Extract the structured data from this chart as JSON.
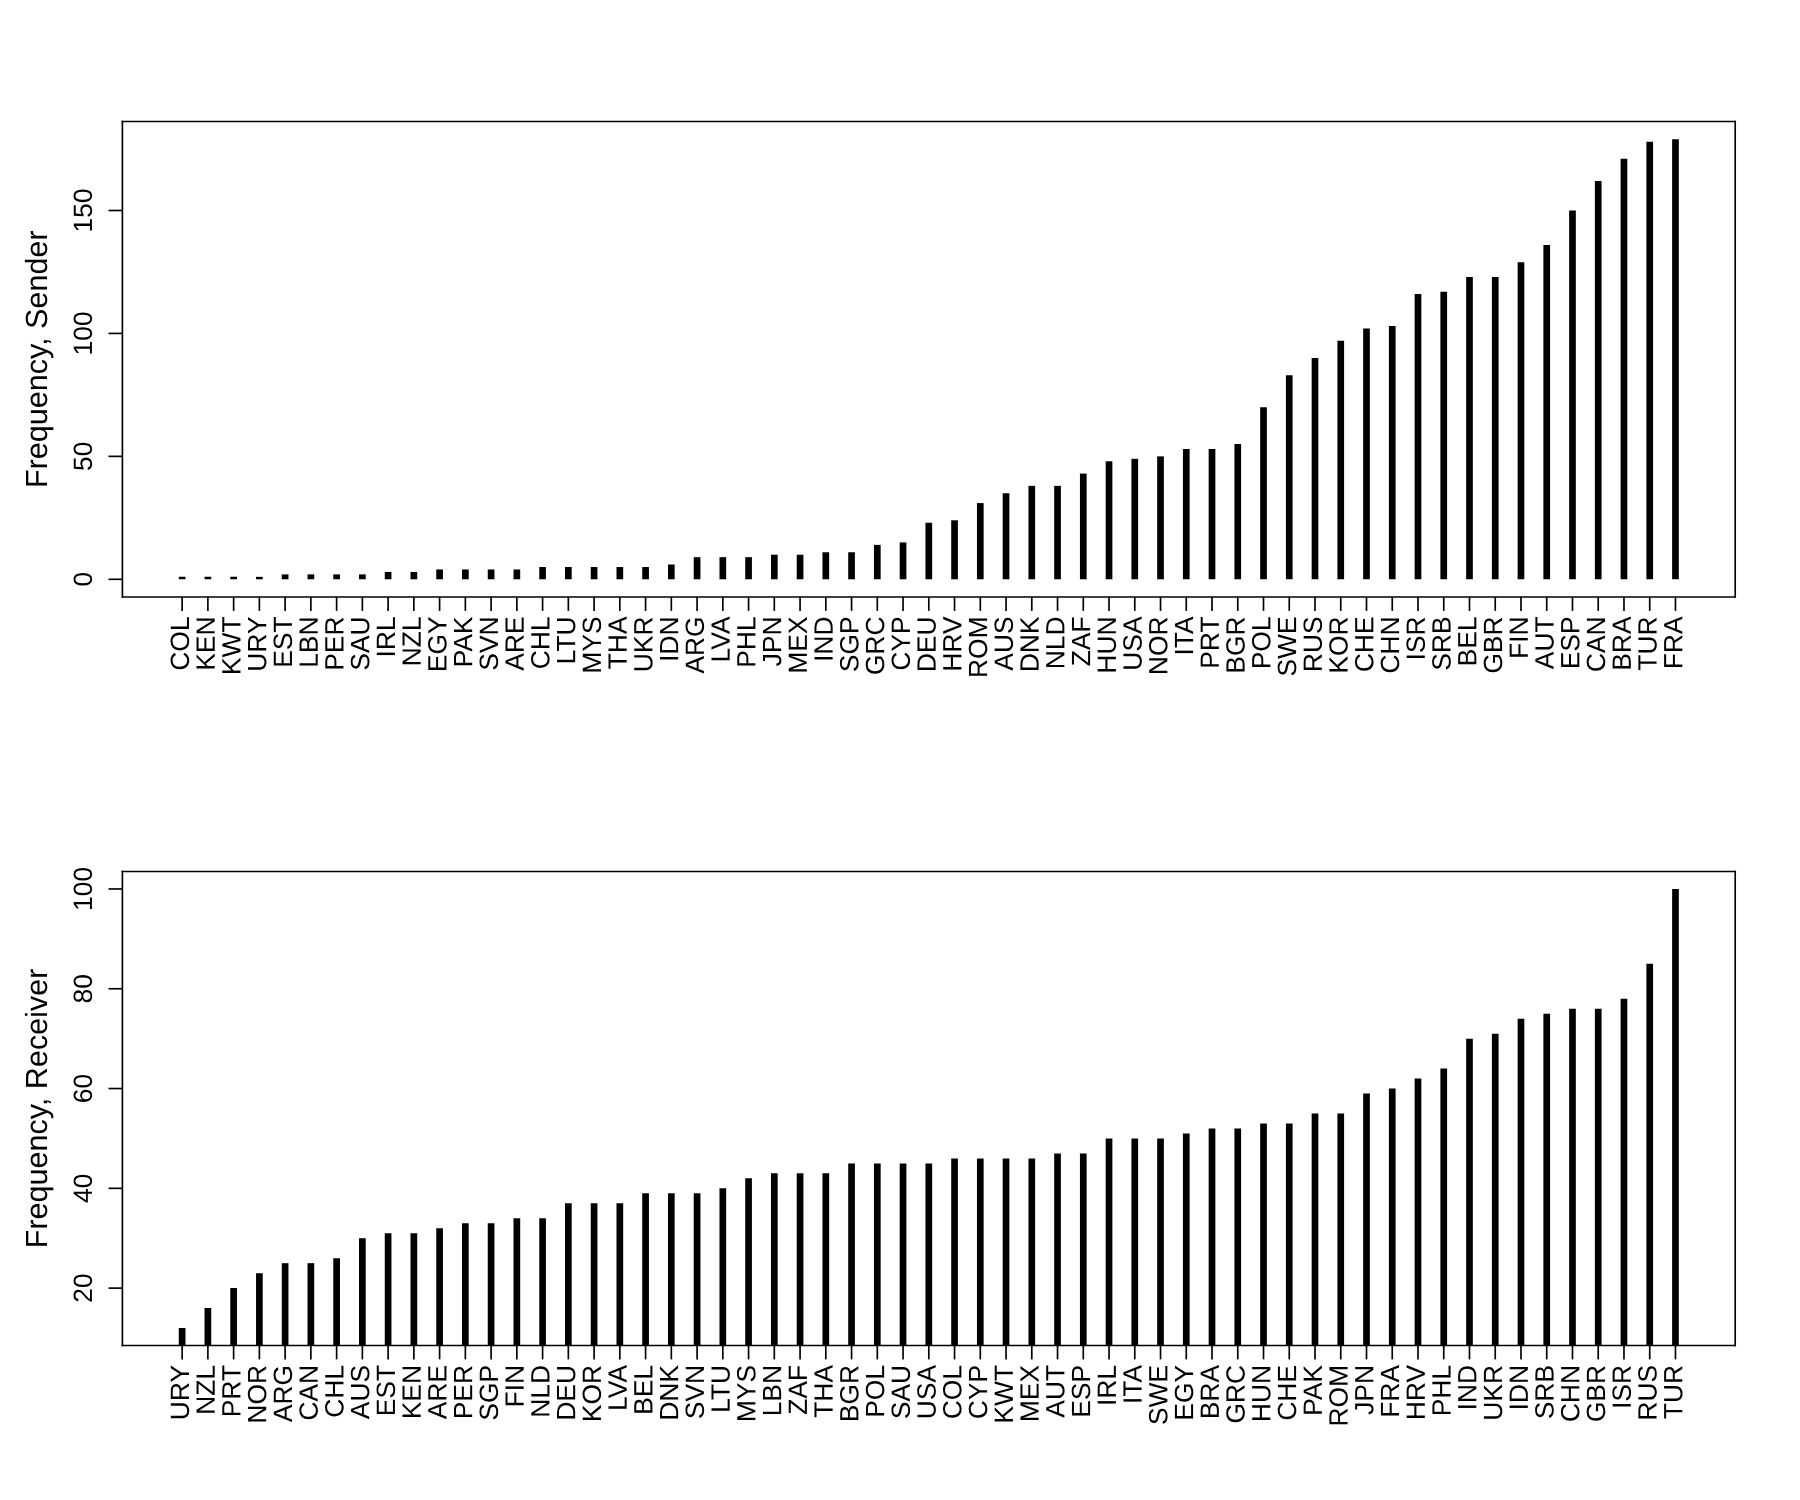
{
  "chart_data": [
    {
      "type": "bar",
      "ylabel": "Frequency, Sender",
      "categories": [
        "COL",
        "KEN",
        "KWT",
        "URY",
        "EST",
        "LBN",
        "PER",
        "SAU",
        "IRL",
        "NZL",
        "EGY",
        "PAK",
        "SVN",
        "ARE",
        "CHL",
        "LTU",
        "MYS",
        "THA",
        "UKR",
        "IDN",
        "ARG",
        "LVA",
        "PHL",
        "JPN",
        "MEX",
        "IND",
        "SGP",
        "GRC",
        "CYP",
        "DEU",
        "HRV",
        "ROM",
        "AUS",
        "DNK",
        "NLD",
        "ZAF",
        "HUN",
        "USA",
        "NOR",
        "ITA",
        "PRT",
        "BGR",
        "POL",
        "SWE",
        "RUS",
        "KOR",
        "CHE",
        "CHN",
        "ISR",
        "SRB",
        "BEL",
        "GBR",
        "FIN",
        "AUT",
        "ESP",
        "CAN",
        "BRA",
        "TUR",
        "FRA"
      ],
      "values": [
        1,
        1,
        1,
        1,
        2,
        2,
        2,
        2,
        3,
        3,
        4,
        4,
        4,
        4,
        5,
        5,
        5,
        5,
        5,
        6,
        9,
        9,
        9,
        10,
        10,
        11,
        11,
        14,
        15,
        23,
        24,
        31,
        35,
        38,
        38,
        43,
        48,
        49,
        50,
        53,
        53,
        55,
        70,
        83,
        90,
        97,
        102,
        103,
        116,
        117,
        123,
        123,
        129,
        136,
        150,
        162,
        171,
        178,
        179
      ],
      "color": "#000000",
      "ylim": [
        -7.2,
        186.2
      ],
      "yticks": [
        0,
        50,
        100,
        150
      ],
      "grid": false
    },
    {
      "type": "bar",
      "ylabel": "Frequency, Receiver",
      "categories": [
        "URY",
        "NZL",
        "PRT",
        "NOR",
        "ARG",
        "CAN",
        "CHL",
        "AUS",
        "EST",
        "KEN",
        "ARE",
        "PER",
        "SGP",
        "FIN",
        "NLD",
        "DEU",
        "KOR",
        "LVA",
        "BEL",
        "DNK",
        "SVN",
        "LTU",
        "MYS",
        "LBN",
        "ZAF",
        "THA",
        "BGR",
        "POL",
        "SAU",
        "USA",
        "COL",
        "CYP",
        "KWT",
        "MEX",
        "AUT",
        "ESP",
        "IRL",
        "ITA",
        "SWE",
        "EGY",
        "BRA",
        "GRC",
        "HUN",
        "CHE",
        "PAK",
        "ROM",
        "JPN",
        "FRA",
        "HRV",
        "PHL",
        "IND",
        "UKR",
        "IDN",
        "SRB",
        "CHN",
        "GBR",
        "ISR",
        "RUS",
        "TUR"
      ],
      "values": [
        12,
        16,
        20,
        23,
        25,
        25,
        26,
        30,
        31,
        31,
        32,
        33,
        33,
        34,
        34,
        37,
        37,
        37,
        39,
        39,
        39,
        40,
        42,
        43,
        43,
        43,
        45,
        45,
        45,
        45,
        46,
        46,
        46,
        46,
        47,
        47,
        50,
        50,
        50,
        51,
        52,
        52,
        53,
        53,
        55,
        55,
        59,
        60,
        62,
        64,
        70,
        71,
        74,
        75,
        76,
        76,
        78,
        85,
        100
      ],
      "color": "#000000",
      "ylim": [
        8.5,
        103.5
      ],
      "yticks": [
        20,
        40,
        60,
        80,
        100
      ],
      "grid": false
    }
  ]
}
